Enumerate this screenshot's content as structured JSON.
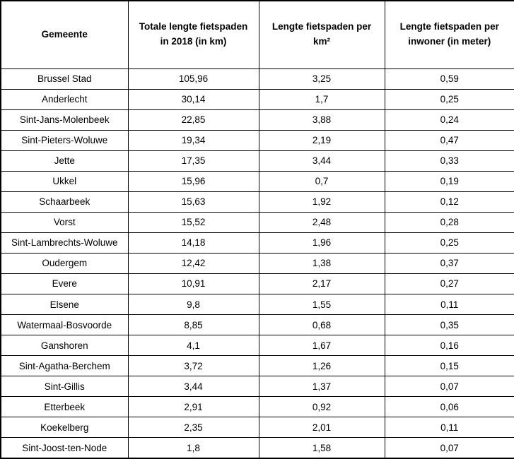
{
  "table": {
    "columns": [
      {
        "label": "Gemeente"
      },
      {
        "label": "Totale lengte fietspaden in 2018 (in km)"
      },
      {
        "label": "Lengte fietspaden per km²"
      },
      {
        "label": "Lengte fietspaden per inwoner (in meter)"
      }
    ],
    "rows": [
      {
        "gemeente": "Brussel Stad",
        "totaal_km": "105,96",
        "per_km2": "3,25",
        "per_inwoner": "0,59"
      },
      {
        "gemeente": "Anderlecht",
        "totaal_km": "30,14",
        "per_km2": "1,7",
        "per_inwoner": "0,25"
      },
      {
        "gemeente": "Sint-Jans-Molenbeek",
        "totaal_km": "22,85",
        "per_km2": "3,88",
        "per_inwoner": "0,24"
      },
      {
        "gemeente": "Sint-Pieters-Woluwe",
        "totaal_km": "19,34",
        "per_km2": "2,19",
        "per_inwoner": "0,47"
      },
      {
        "gemeente": "Jette",
        "totaal_km": "17,35",
        "per_km2": "3,44",
        "per_inwoner": "0,33"
      },
      {
        "gemeente": "Ukkel",
        "totaal_km": "15,96",
        "per_km2": "0,7",
        "per_inwoner": "0,19"
      },
      {
        "gemeente": "Schaarbeek",
        "totaal_km": "15,63",
        "per_km2": "1,92",
        "per_inwoner": "0,12"
      },
      {
        "gemeente": "Vorst",
        "totaal_km": "15,52",
        "per_km2": "2,48",
        "per_inwoner": "0,28"
      },
      {
        "gemeente": "Sint-Lambrechts-Woluwe",
        "totaal_km": "14,18",
        "per_km2": "1,96",
        "per_inwoner": "0,25"
      },
      {
        "gemeente": "Oudergem",
        "totaal_km": "12,42",
        "per_km2": "1,38",
        "per_inwoner": "0,37"
      },
      {
        "gemeente": "Evere",
        "totaal_km": "10,91",
        "per_km2": "2,17",
        "per_inwoner": "0,27"
      },
      {
        "gemeente": "Elsene",
        "totaal_km": "9,8",
        "per_km2": "1,55",
        "per_inwoner": "0,11"
      },
      {
        "gemeente": "Watermaal-Bosvoorde",
        "totaal_km": "8,85",
        "per_km2": "0,68",
        "per_inwoner": "0,35"
      },
      {
        "gemeente": "Ganshoren",
        "totaal_km": "4,1",
        "per_km2": "1,67",
        "per_inwoner": "0,16"
      },
      {
        "gemeente": "Sint-Agatha-Berchem",
        "totaal_km": "3,72",
        "per_km2": "1,26",
        "per_inwoner": "0,15"
      },
      {
        "gemeente": "Sint-Gillis",
        "totaal_km": "3,44",
        "per_km2": "1,37",
        "per_inwoner": "0,07"
      },
      {
        "gemeente": "Etterbeek",
        "totaal_km": "2,91",
        "per_km2": "0,92",
        "per_inwoner": "0,06"
      },
      {
        "gemeente": "Koekelberg",
        "totaal_km": "2,35",
        "per_km2": "2,01",
        "per_inwoner": "0,11"
      },
      {
        "gemeente": "Sint-Joost-ten-Node",
        "totaal_km": "1,8",
        "per_km2": "1,58",
        "per_inwoner": "0,07"
      }
    ]
  },
  "chart_data": {
    "type": "table",
    "title": "",
    "columns": [
      "Gemeente",
      "Totale lengte fietspaden in 2018 (in km)",
      "Lengte fietspaden per km²",
      "Lengte fietspaden per inwoner (in meter)"
    ],
    "categories": [
      "Brussel Stad",
      "Anderlecht",
      "Sint-Jans-Molenbeek",
      "Sint-Pieters-Woluwe",
      "Jette",
      "Ukkel",
      "Schaarbeek",
      "Vorst",
      "Sint-Lambrechts-Woluwe",
      "Oudergem",
      "Evere",
      "Elsene",
      "Watermaal-Bosvoorde",
      "Ganshoren",
      "Sint-Agatha-Berchem",
      "Sint-Gillis",
      "Etterbeek",
      "Koekelberg",
      "Sint-Joost-ten-Node"
    ],
    "series": [
      {
        "name": "Totale lengte fietspaden in 2018 (in km)",
        "values": [
          105.96,
          30.14,
          22.85,
          19.34,
          17.35,
          15.96,
          15.63,
          15.52,
          14.18,
          12.42,
          10.91,
          9.8,
          8.85,
          4.1,
          3.72,
          3.44,
          2.91,
          2.35,
          1.8
        ]
      },
      {
        "name": "Lengte fietspaden per km²",
        "values": [
          3.25,
          1.7,
          3.88,
          2.19,
          3.44,
          0.7,
          1.92,
          2.48,
          1.96,
          1.38,
          2.17,
          1.55,
          0.68,
          1.67,
          1.26,
          1.37,
          0.92,
          2.01,
          1.58
        ]
      },
      {
        "name": "Lengte fietspaden per inwoner (in meter)",
        "values": [
          0.59,
          0.25,
          0.24,
          0.47,
          0.33,
          0.19,
          0.12,
          0.28,
          0.25,
          0.37,
          0.27,
          0.11,
          0.35,
          0.16,
          0.15,
          0.07,
          0.06,
          0.11,
          0.07
        ]
      }
    ],
    "decimal_separator": ",",
    "border_color": "#000000",
    "background_color": "#ffffff"
  }
}
